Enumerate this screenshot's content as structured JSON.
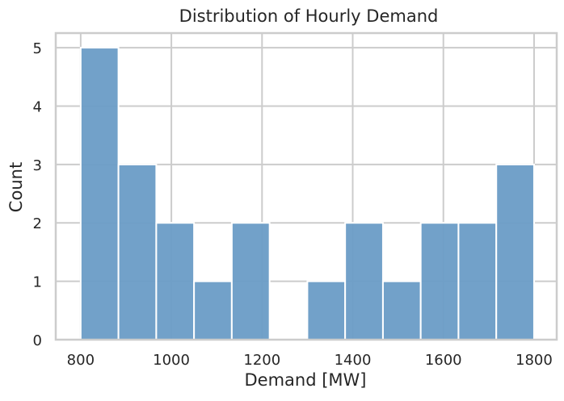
{
  "chart_data": {
    "type": "bar",
    "title": "Distribution of Hourly Demand",
    "xlabel": "Demand [MW]",
    "ylabel": "Count",
    "bin_edges": [
      800,
      883.3,
      966.7,
      1050,
      1133.3,
      1216.7,
      1300,
      1383.3,
      1466.7,
      1550,
      1633.3,
      1716.7,
      1800
    ],
    "counts": [
      5,
      3,
      2,
      1,
      2,
      0,
      1,
      2,
      1,
      2,
      2,
      3
    ],
    "xlim": [
      745,
      1850
    ],
    "ylim": [
      0,
      5.25
    ],
    "xticks": [
      800,
      1000,
      1200,
      1400,
      1600,
      1800
    ],
    "yticks": [
      0,
      1,
      2,
      3,
      4,
      5
    ],
    "xtick_labels": [
      "800",
      "1000",
      "1200",
      "1400",
      "1600",
      "1800"
    ],
    "ytick_labels": [
      "0",
      "1",
      "2",
      "3",
      "4",
      "5"
    ],
    "grid": true,
    "colors": {
      "bar": "#6a9cc6",
      "bar_edge": "#ffffff",
      "grid": "#cccccc",
      "spine": "#cccccc",
      "text": "#262626"
    }
  }
}
